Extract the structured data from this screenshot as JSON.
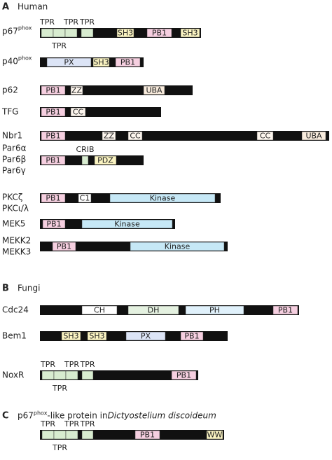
{
  "sections": [
    {
      "label": "A",
      "title": {
        "text": "Human"
      },
      "proteins": [
        {
          "names": [
            "p67"
          ],
          "sup": "phox",
          "domains": [
            "TPR",
            "TPR",
            "TPR",
            "TPR",
            "SH3",
            "PB1",
            "SH3"
          ]
        },
        {
          "names": [
            "p40"
          ],
          "sup": "phox",
          "domains": [
            "PX",
            "SH3",
            "PB1"
          ]
        },
        {
          "names": [
            "p62"
          ],
          "domains": [
            "PB1",
            "ZZ",
            "UBA"
          ]
        },
        {
          "names": [
            "TFG"
          ],
          "domains": [
            "PB1",
            "CC"
          ]
        },
        {
          "names": [
            "Nbr1"
          ],
          "domains": [
            "PB1",
            "ZZ",
            "CC",
            "CC",
            "UBA"
          ]
        },
        {
          "names": [
            "Par6α",
            "Par6β",
            "Par6γ"
          ],
          "domains": [
            "PB1",
            "CRIB",
            "PDZ"
          ]
        },
        {
          "names": [
            "PKCζ",
            "PKCι/λ"
          ],
          "domains": [
            "PB1",
            "C1",
            "Kinase"
          ]
        },
        {
          "names": [
            "MEK5"
          ],
          "domains": [
            "PB1",
            "Kinase"
          ]
        },
        {
          "names": [
            "MEKK2",
            "MEKK3"
          ],
          "domains": [
            "PB1",
            "Kinase"
          ]
        }
      ]
    },
    {
      "label": "B",
      "title": {
        "text": "Fungi"
      },
      "proteins": [
        {
          "names": [
            "Cdc24"
          ],
          "domains": [
            "CH",
            "DH",
            "PH",
            "PB1"
          ]
        },
        {
          "names": [
            "Bem1"
          ],
          "domains": [
            "SH3",
            "SH3",
            "PX",
            "PB1"
          ]
        },
        {
          "names": [
            "NoxR"
          ],
          "domains": [
            "TPR",
            "TPR",
            "TPR",
            "TPR",
            "PB1"
          ]
        }
      ]
    },
    {
      "label": "C",
      "title": {
        "text": "p67",
        "sup": "phox",
        "rest": "-like protein in ",
        "species": "Dictyostelium discoideum"
      },
      "proteins": [
        {
          "domains": [
            "TPR",
            "TPR",
            "TPR",
            "TPR",
            "PB1",
            "WW"
          ]
        }
      ]
    }
  ]
}
